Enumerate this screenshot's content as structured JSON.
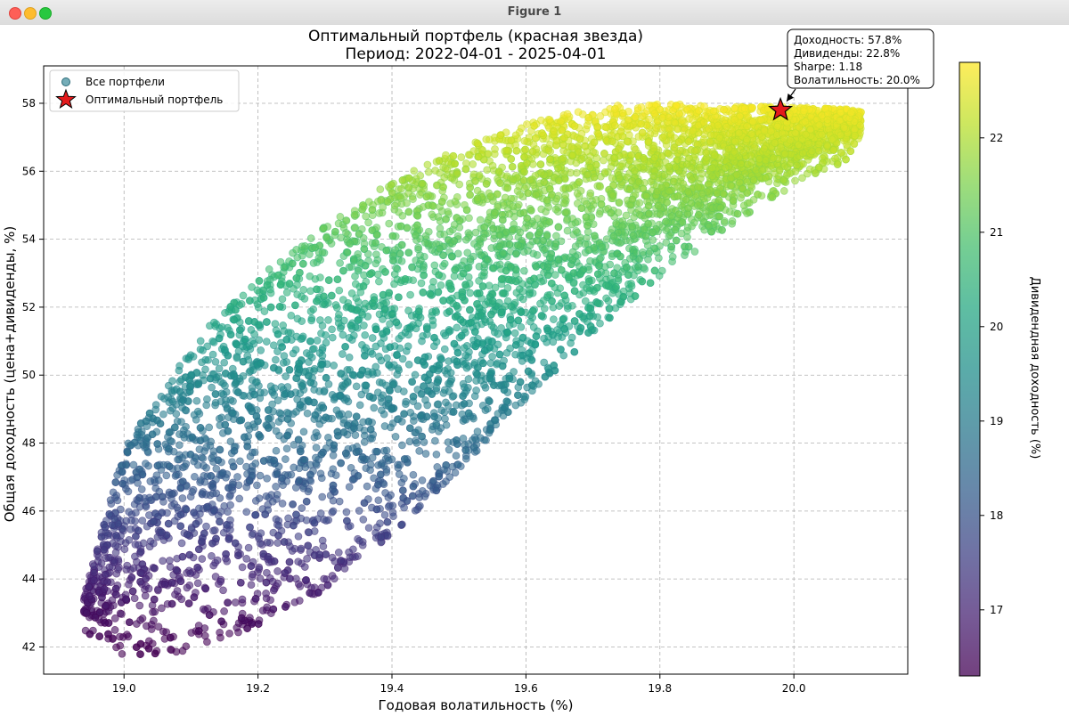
{
  "window": {
    "title": "Figure 1"
  },
  "chart_data": {
    "type": "scatter",
    "title": "Оптимальный портфель (красная звезда)",
    "subtitle": "Период: 2022-04-01 - 2025-04-01",
    "xlabel": "Годовая волатильность (%)",
    "ylabel": "Общая доходность (цена+дивиденды, %)",
    "xlim": [
      18.88,
      20.17
    ],
    "ylim": [
      41.2,
      59.1
    ],
    "xticks": [
      19.0,
      19.2,
      19.4,
      19.6,
      19.8,
      20.0
    ],
    "xtick_labels": [
      "19.0",
      "19.2",
      "19.4",
      "19.6",
      "19.8",
      "20.0"
    ],
    "yticks": [
      42,
      44,
      46,
      48,
      50,
      52,
      54,
      56,
      58
    ],
    "ytick_labels": [
      "42",
      "44",
      "46",
      "48",
      "50",
      "52",
      "54",
      "56",
      "58"
    ],
    "grid": true,
    "legend_position": "top-left",
    "legend": [
      {
        "label": "Все портфели",
        "marker": "circle"
      },
      {
        "label": "Оптимальный портфель",
        "marker": "star"
      }
    ],
    "colormap": "viridis",
    "color_range": [
      16.3,
      22.8
    ],
    "colorbar": {
      "label": "Дивидендная доходность (%)",
      "ticks": [
        17,
        18,
        19,
        20,
        21,
        22
      ],
      "tick_labels": [
        "17",
        "18",
        "19",
        "20",
        "21",
        "22"
      ]
    },
    "cloud_envelope": {
      "upper": [
        [
          18.94,
          43.5
        ],
        [
          19.0,
          47.8
        ],
        [
          19.1,
          50.9
        ],
        [
          19.2,
          52.9
        ],
        [
          19.3,
          54.4
        ],
        [
          19.4,
          55.7
        ],
        [
          19.5,
          56.7
        ],
        [
          19.6,
          57.4
        ],
        [
          19.7,
          57.9
        ],
        [
          19.8,
          58.0
        ],
        [
          19.9,
          57.9
        ],
        [
          20.0,
          57.9
        ],
        [
          20.1,
          57.8
        ]
      ],
      "lower": [
        [
          18.94,
          43.0
        ],
        [
          19.0,
          42.3
        ],
        [
          19.1,
          42.5
        ],
        [
          19.2,
          43.2
        ],
        [
          19.3,
          44.3
        ],
        [
          19.4,
          45.9
        ],
        [
          19.5,
          47.8
        ],
        [
          19.6,
          49.9
        ],
        [
          19.7,
          51.8
        ],
        [
          19.8,
          53.5
        ],
        [
          19.9,
          54.9
        ],
        [
          20.0,
          56.2
        ],
        [
          20.1,
          57.1
        ]
      ]
    },
    "optimal_point": {
      "x": 19.98,
      "y": 57.8,
      "color": "#e31a1c"
    },
    "annotation": {
      "lines": [
        "Доходность: 57.8%",
        "Дивиденды: 22.8%",
        "Sharpe: 1.18",
        "Волатильность: 20.0%"
      ]
    }
  }
}
